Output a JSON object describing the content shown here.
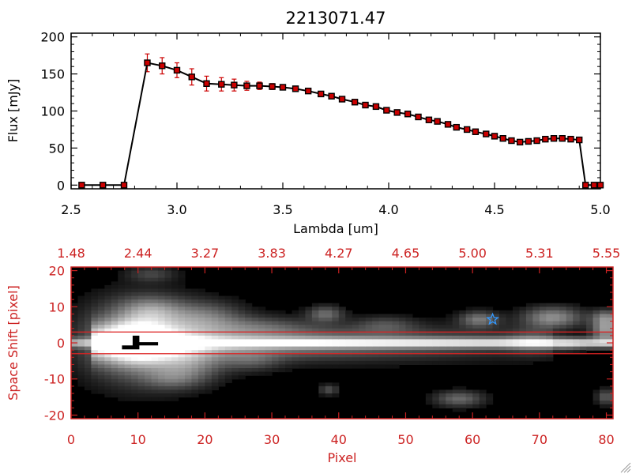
{
  "colors": {
    "background": "#ffffff",
    "axis_top": "#000000",
    "marker_fill": "#cc0000",
    "error_bar": "#cc0000",
    "axis_bottom": "#cc2222",
    "extraction_lines": "#dd2222",
    "star": "#3399ff"
  },
  "chart_data": [
    {
      "type": "line",
      "title": "2213071.47",
      "xlabel": "Lambda [um]",
      "ylabel": "Flux [mJy]",
      "xlim": [
        2.5,
        5.0
      ],
      "ylim": [
        -5,
        205
      ],
      "xticks": [
        2.5,
        3.0,
        3.5,
        4.0,
        4.5,
        5.0
      ],
      "xtick_labels": [
        "2.5",
        "3.0",
        "3.5",
        "4.0",
        "4.5",
        "5.0"
      ],
      "yticks": [
        0,
        50,
        100,
        150,
        200
      ],
      "ytick_labels": [
        "0",
        "50",
        "100",
        "150",
        "200"
      ],
      "series": [
        {
          "x": [
            2.55,
            2.65,
            2.75,
            2.86,
            2.93,
            3.0,
            3.07,
            3.14,
            3.21,
            3.27,
            3.33,
            3.39,
            3.45,
            3.5,
            3.56,
            3.62,
            3.68,
            3.73,
            3.78,
            3.84,
            3.89,
            3.94,
            3.99,
            4.04,
            4.09,
            4.14,
            4.19,
            4.23,
            4.28,
            4.32,
            4.37,
            4.41,
            4.46,
            4.5,
            4.54,
            4.58,
            4.62,
            4.66,
            4.7,
            4.74,
            4.78,
            4.82,
            4.86,
            4.9,
            4.93,
            4.97,
            5.0
          ],
          "y": [
            0,
            0,
            0,
            165,
            161,
            155,
            146,
            137,
            136,
            135,
            134,
            134,
            133,
            132,
            130,
            127,
            123,
            120,
            116,
            112,
            108,
            106,
            101,
            98,
            96,
            92,
            88,
            86,
            82,
            78,
            75,
            72,
            69,
            66,
            63,
            60,
            58,
            59,
            60,
            62,
            63,
            63,
            62,
            61,
            0,
            0,
            0
          ],
          "yerr": [
            0,
            0,
            0,
            12,
            11,
            10,
            11,
            10,
            9,
            8,
            6,
            5,
            4,
            3,
            3,
            3,
            2,
            2,
            2,
            2,
            2,
            2,
            2,
            2,
            2,
            2,
            2,
            2,
            2,
            2,
            2,
            2,
            2,
            2,
            2,
            2,
            2,
            2,
            2,
            2,
            2,
            2,
            2,
            2,
            0,
            0,
            0
          ]
        }
      ],
      "grid": false
    },
    {
      "type": "heatmap",
      "xlabel": "Pixel",
      "ylabel": "Space Shift [pixel]",
      "xlim": [
        0,
        81
      ],
      "ylim": [
        -21,
        21
      ],
      "xticks": [
        0,
        10,
        20,
        30,
        40,
        50,
        60,
        70,
        80
      ],
      "xtick_labels": [
        "0",
        "10",
        "20",
        "30",
        "40",
        "50",
        "60",
        "70",
        "80"
      ],
      "yticks": [
        -20,
        -10,
        0,
        10,
        20
      ],
      "ytick_labels": [
        "-20",
        "-10",
        "0",
        "10",
        "20"
      ],
      "top_axis": {
        "ticks": [
          0,
          10,
          20,
          30,
          40,
          50,
          60,
          70,
          80
        ],
        "labels": [
          "1.48",
          "2.44",
          "3.27",
          "3.83",
          "4.27",
          "4.65",
          "5.00",
          "5.31",
          "5.55"
        ]
      },
      "extraction_lines_y": [
        3,
        -3
      ],
      "star_position": [
        63,
        6.5
      ],
      "black_patch": [
        [
          9.2,
          2.0
        ],
        [
          10.2,
          2.0
        ],
        [
          10.2,
          0.2
        ],
        [
          13,
          0.2
        ],
        [
          13,
          -0.7
        ],
        [
          10.2,
          -0.7
        ],
        [
          10.2,
          -1.8
        ],
        [
          7.6,
          -1.8
        ],
        [
          7.6,
          -0.7
        ],
        [
          9.2,
          -0.7
        ]
      ],
      "features": [
        {
          "x0": 0,
          "x1": 81,
          "y": 0,
          "sigma_y": 0.9,
          "amp_start": 0.55,
          "amp_end": 0.8
        },
        {
          "x0": 3,
          "x1": 72,
          "y": 0,
          "sigma_y": 3.2,
          "amp_start": 0.75,
          "amp_end": 0.1
        },
        {
          "cx": 10.5,
          "cy": 0.5,
          "sx": 5.5,
          "sy": 7,
          "amp": 0.7
        },
        {
          "cx": 10,
          "cy": 0.5,
          "sx": 3,
          "sy": 3.5,
          "amp": 0.5
        },
        {
          "cx": 12,
          "cy": 9,
          "sx": 3,
          "sy": 2.5,
          "amp": 0.3
        },
        {
          "cx": 20,
          "cy": 7,
          "sx": 4,
          "sy": 3,
          "amp": 0.35
        },
        {
          "cx": 18,
          "cy": -6,
          "sx": 3.5,
          "sy": 3.5,
          "amp": 0.3
        },
        {
          "cx": 15,
          "cy": -10,
          "sx": 3,
          "sy": 2,
          "amp": 0.2
        },
        {
          "cx": 12,
          "cy": 19,
          "sx": 2.5,
          "sy": 1.5,
          "amp": 0.2
        },
        {
          "cx": 28,
          "cy": 4.5,
          "sx": 5,
          "sy": 2,
          "amp": 0.2
        },
        {
          "cx": 27,
          "cy": -5,
          "sx": 3,
          "sy": 2,
          "amp": 0.2
        },
        {
          "cx": 38,
          "cy": 8,
          "sx": 1.8,
          "sy": 1.5,
          "amp": 0.35
        },
        {
          "cx": 38.5,
          "cy": -13,
          "sx": 1,
          "sy": 1,
          "amp": 0.25
        },
        {
          "cx": 47,
          "cy": 5,
          "sx": 3,
          "sy": 1.6,
          "amp": 0.2
        },
        {
          "cx": 61,
          "cy": 6.5,
          "sx": 2,
          "sy": 1.5,
          "amp": 0.4
        },
        {
          "cx": 58,
          "cy": -15.5,
          "sx": 2.5,
          "sy": 1.5,
          "amp": 0.35
        },
        {
          "cx": 72,
          "cy": 7,
          "sx": 3,
          "sy": 2,
          "amp": 0.5
        },
        {
          "cx": 80,
          "cy": 3.5,
          "sx": 1.5,
          "sy": 2,
          "amp": 0.55
        },
        {
          "cx": 80,
          "cy": 7,
          "sx": 1.5,
          "sy": 1.5,
          "amp": 0.4
        },
        {
          "cx": 80,
          "cy": -15,
          "sx": 1,
          "sy": 1.5,
          "amp": 0.3
        },
        {
          "cx": 69,
          "cy": 0.5,
          "sx": 2.5,
          "sy": 2.5,
          "amp": 0.2
        },
        {
          "cx": 74,
          "cy": -0.5,
          "sx": 2,
          "sy": 1.5,
          "amp": 0.15
        }
      ]
    }
  ]
}
